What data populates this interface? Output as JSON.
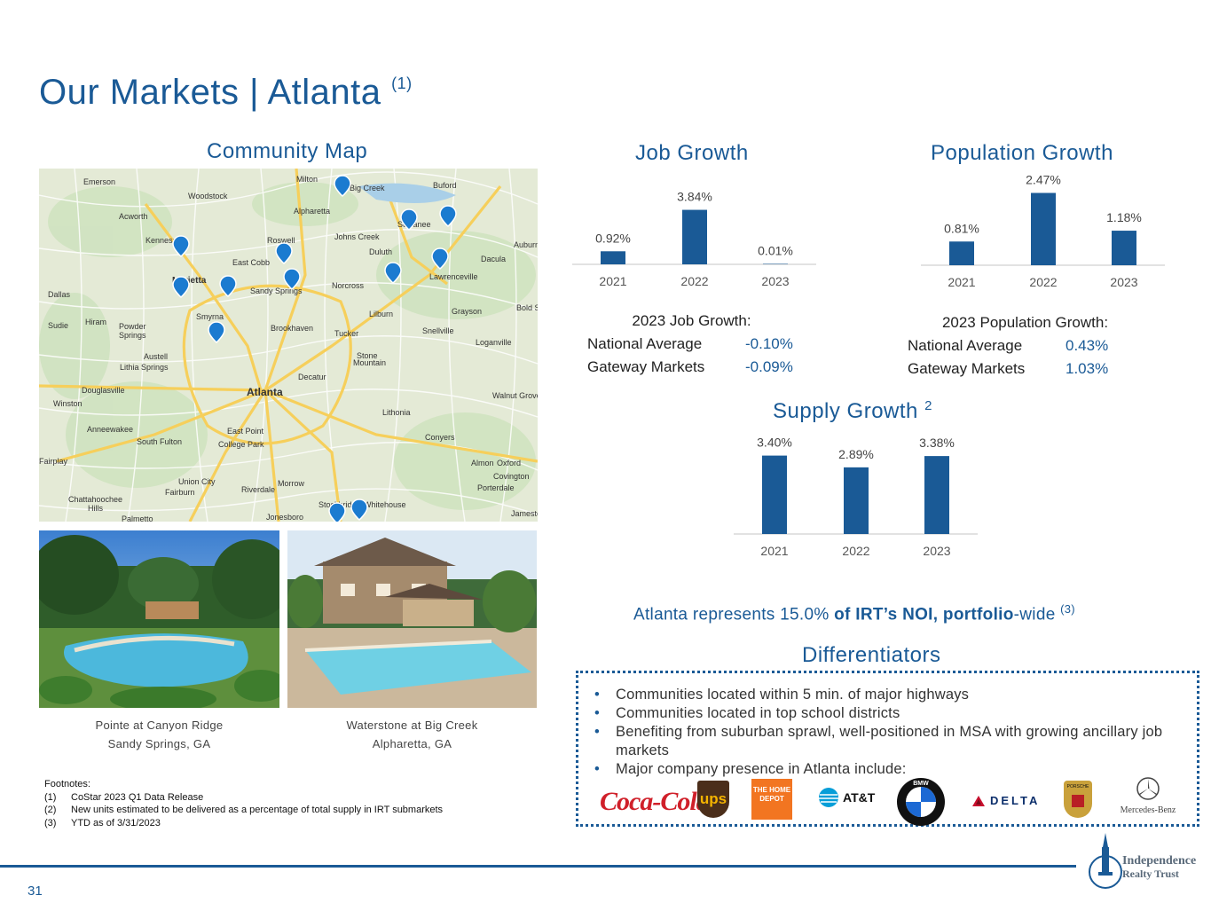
{
  "title": {
    "main": "Our Markets | Atlanta",
    "sup": "(1)"
  },
  "map_section": {
    "title": "Community Map",
    "place_labels": [
      "Emerson",
      "Woodstock",
      "Milton",
      "Big Creek",
      "Buford",
      "Acworth",
      "Alpharetta",
      "Suwanee",
      "Kennesaw",
      "Roswell",
      "Johns Creek",
      "Auburn",
      "East Cobb",
      "Duluth",
      "Dacula",
      "Marietta",
      "Sandy Springs",
      "Norcross",
      "Lawrenceville",
      "Dallas",
      "Lilburn",
      "Grayson",
      "Hiram",
      "Powder Springs",
      "Smyrna",
      "Brookhaven",
      "Tucker",
      "Snellville",
      "Loganville",
      "Austell",
      "Lithia Springs",
      "Stone Mountain",
      "Decatur",
      "Douglasville",
      "Atlanta",
      "Walnut Grove",
      "Winston",
      "Lithonia",
      "Anneewakee",
      "East Point",
      "Conyers",
      "South Fulton",
      "College Park",
      "Fairplay",
      "Almon",
      "Oxford",
      "Covington",
      "Union City",
      "Morrow",
      "Porterdale",
      "Fairburn",
      "Riverdale",
      "Chattahoochee Hills",
      "Stockbridge",
      "Whitehouse",
      "Palmetto",
      "Jonesboro",
      "Jameston",
      "Sudie",
      "Bold Springs"
    ]
  },
  "photos": [
    {
      "name": "Pointe at Canyon Ridge",
      "location": "Sandy Springs, GA"
    },
    {
      "name": "Waterstone at Big Creek",
      "location": "Alpharetta, GA"
    }
  ],
  "job_growth": {
    "title": "Job Growth",
    "subtitle": "2023 Job Growth:",
    "national_label": "National Average",
    "national_value": "-0.10%",
    "gateway_label": "Gateway Markets",
    "gateway_value": "-0.09%"
  },
  "population_growth": {
    "title": "Population Growth",
    "subtitle": "2023 Population Growth:",
    "national_label": "National Average",
    "national_value": "0.43%",
    "gateway_label": "Gateway Markets",
    "gateway_value": "1.03%"
  },
  "supply_growth": {
    "title": "Supply Growth",
    "sup": "2"
  },
  "chart_data": [
    {
      "type": "bar",
      "title": "Job Growth",
      "categories": [
        "2021",
        "2022",
        "2023"
      ],
      "values": [
        0.92,
        3.84,
        0.01
      ],
      "labels": [
        "0.92%",
        "3.84%",
        "0.01%"
      ],
      "color": "#1a5a96"
    },
    {
      "type": "bar",
      "title": "Population Growth",
      "categories": [
        "2021",
        "2022",
        "2023"
      ],
      "values": [
        0.81,
        2.47,
        1.18
      ],
      "labels": [
        "0.81%",
        "2.47%",
        "1.18%"
      ],
      "color": "#1a5a96"
    },
    {
      "type": "bar",
      "title": "Supply Growth",
      "categories": [
        "2021",
        "2022",
        "2023"
      ],
      "values": [
        3.4,
        2.89,
        3.38
      ],
      "labels": [
        "3.40%",
        "2.89%",
        "3.38%"
      ],
      "color": "#1a5a96"
    }
  ],
  "noi": {
    "prefix": "Atlanta represents 15.0% ",
    "bold": "of IRT’s NOI, portfolio",
    "suffix": "-wide ",
    "sup": "(3)"
  },
  "differentiators": {
    "title": "Differentiators",
    "items": [
      "Communities located within 5 min. of major highways",
      "Communities located in top school districts",
      "Benefiting from suburban sprawl, well-positioned in MSA with growing ancillary job markets",
      "Major company presence in Atlanta include:"
    ],
    "logos": [
      "Coca-Cola",
      "ups",
      "THE HOME DEPOT",
      "AT&T",
      "BMW",
      "DELTA",
      "PORSCHE",
      "Mercedes-Benz"
    ]
  },
  "footnotes": {
    "heading": "Footnotes:",
    "items": [
      {
        "num": "(1)",
        "text": "CoStar 2023 Q1 Data Release"
      },
      {
        "num": "(2)",
        "text": "New units estimated to be delivered as a percentage of total supply in IRT submarkets"
      },
      {
        "num": "(3)",
        "text": "YTD as of 3/31/2023"
      }
    ]
  },
  "footer": {
    "page_number": "31",
    "logo_line1": "Independence",
    "logo_line2": "Realty Trust"
  }
}
